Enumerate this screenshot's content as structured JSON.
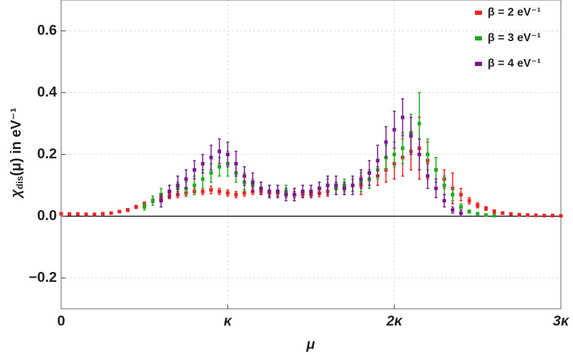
{
  "chart_data": {
    "type": "scatter",
    "x_label": "μ",
    "y_label": {
      "symbol": "χ",
      "subscript": "dis",
      "rest": "(μ) in eV⁻¹"
    },
    "xlim": [
      0,
      3
    ],
    "ylim": [
      -0.3,
      0.7
    ],
    "xticks": [
      0,
      {
        "value": 1,
        "label": "κ"
      },
      {
        "value": 2,
        "label": "2κ"
      },
      {
        "value": 3,
        "label": "3κ"
      }
    ],
    "yticks": [
      {
        "value": -0.2,
        "label": "−0.2"
      },
      {
        "value": 0,
        "label": "0.0"
      },
      0.2,
      0.4,
      0.6
    ],
    "grid": true,
    "legend": "top-right",
    "series": [
      {
        "name": "β = 2 eV⁻¹",
        "color": "#ee2222",
        "x": [
          0,
          0.05,
          0.1,
          0.15,
          0.2,
          0.25,
          0.3,
          0.35,
          0.4,
          0.45,
          0.5,
          0.55,
          0.6,
          0.65,
          0.7,
          0.75,
          0.8,
          0.85,
          0.9,
          0.95,
          1.0,
          1.05,
          1.1,
          1.15,
          1.2,
          1.25,
          1.3,
          1.35,
          1.4,
          1.45,
          1.5,
          1.55,
          1.6,
          1.65,
          1.7,
          1.75,
          1.8,
          1.85,
          1.9,
          1.95,
          2.0,
          2.05,
          2.1,
          2.15,
          2.2,
          2.25,
          2.3,
          2.35,
          2.4,
          2.45,
          2.5,
          2.55,
          2.6,
          2.65,
          2.7,
          2.75,
          2.8,
          2.85,
          2.9,
          2.95,
          3.0
        ],
        "values": [
          0.008,
          0.007,
          0.007,
          0.006,
          0.006,
          0.008,
          0.01,
          0.015,
          0.02,
          0.03,
          0.04,
          0.05,
          0.06,
          0.065,
          0.07,
          0.075,
          0.08,
          0.08,
          0.085,
          0.08,
          0.075,
          0.07,
          0.075,
          0.08,
          0.08,
          0.075,
          0.075,
          0.07,
          0.07,
          0.07,
          0.07,
          0.075,
          0.08,
          0.09,
          0.09,
          0.1,
          0.1,
          0.12,
          0.13,
          0.15,
          0.17,
          0.19,
          0.21,
          0.22,
          0.18,
          0.15,
          0.12,
          0.09,
          0.07,
          0.05,
          0.035,
          0.025,
          0.015,
          0.01,
          0.007,
          0.005,
          0.004,
          0.003,
          0.002,
          0.002,
          0.001
        ],
        "errors": [
          0.003,
          0.003,
          0.003,
          0.003,
          0.003,
          0.003,
          0.003,
          0.004,
          0.005,
          0.005,
          0.006,
          0.006,
          0.008,
          0.008,
          0.01,
          0.01,
          0.01,
          0.01,
          0.012,
          0.01,
          0.01,
          0.01,
          0.01,
          0.01,
          0.01,
          0.01,
          0.01,
          0.01,
          0.01,
          0.01,
          0.01,
          0.012,
          0.015,
          0.02,
          0.02,
          0.02,
          0.03,
          0.03,
          0.03,
          0.04,
          0.05,
          0.06,
          0.06,
          0.1,
          0.06,
          0.04,
          0.03,
          0.05,
          0.02,
          0.01,
          0.008,
          0.006,
          0.005,
          0.004,
          0.003,
          0.003,
          0.002,
          0.002,
          0.002,
          0.002,
          0.002
        ]
      },
      {
        "name": "β = 3 eV⁻¹",
        "color": "#22aa22",
        "x": [
          0.5,
          0.55,
          0.6,
          0.65,
          0.7,
          0.75,
          0.8,
          0.85,
          0.9,
          0.95,
          1.0,
          1.05,
          1.1,
          1.15,
          1.2,
          1.25,
          1.3,
          1.35,
          1.4,
          1.45,
          1.5,
          1.55,
          1.6,
          1.65,
          1.7,
          1.75,
          1.8,
          1.85,
          1.9,
          1.95,
          2.0,
          2.05,
          2.1,
          2.15,
          2.2,
          2.25,
          2.3,
          2.35,
          2.4,
          2.45,
          2.5,
          2.55,
          2.6
        ],
        "values": [
          0.03,
          0.05,
          0.07,
          0.08,
          0.09,
          0.09,
          0.1,
          0.12,
          0.14,
          0.16,
          0.17,
          0.14,
          0.11,
          0.1,
          0.09,
          0.08,
          0.08,
          0.08,
          0.07,
          0.08,
          0.08,
          0.09,
          0.1,
          0.09,
          0.1,
          0.1,
          0.11,
          0.12,
          0.15,
          0.19,
          0.2,
          0.22,
          0.27,
          0.3,
          0.2,
          0.15,
          0.1,
          0.07,
          0.03,
          0.015,
          0.008,
          0.004,
          0.002
        ],
        "errors": [
          0.01,
          0.015,
          0.02,
          0.02,
          0.02,
          0.02,
          0.03,
          0.03,
          0.03,
          0.03,
          0.04,
          0.03,
          0.03,
          0.02,
          0.02,
          0.02,
          0.02,
          0.02,
          0.02,
          0.02,
          0.02,
          0.02,
          0.02,
          0.02,
          0.02,
          0.02,
          0.03,
          0.03,
          0.03,
          0.04,
          0.04,
          0.05,
          0.06,
          0.1,
          0.05,
          0.04,
          0.03,
          0.02,
          0.01,
          0.005,
          0.004,
          0.003,
          0.002
        ]
      },
      {
        "name": "β = 4 eV⁻¹",
        "color": "#7a1a8a",
        "x": [
          0.6,
          0.65,
          0.7,
          0.75,
          0.8,
          0.85,
          0.9,
          0.95,
          1.0,
          1.05,
          1.1,
          1.15,
          1.2,
          1.25,
          1.3,
          1.35,
          1.4,
          1.45,
          1.5,
          1.55,
          1.6,
          1.65,
          1.7,
          1.75,
          1.8,
          1.85,
          1.9,
          1.95,
          2.0,
          2.05,
          2.1,
          2.15,
          2.2,
          2.25,
          2.3,
          2.35,
          2.4
        ],
        "values": [
          0.05,
          0.08,
          0.1,
          0.12,
          0.15,
          0.17,
          0.19,
          0.21,
          0.2,
          0.17,
          0.13,
          0.11,
          0.09,
          0.08,
          0.08,
          0.07,
          0.07,
          0.08,
          0.08,
          0.09,
          0.1,
          0.1,
          0.09,
          0.1,
          0.12,
          0.14,
          0.18,
          0.24,
          0.28,
          0.32,
          0.26,
          0.2,
          0.13,
          0.09,
          0.05,
          0.02,
          0.01
        ],
        "errors": [
          0.02,
          0.02,
          0.03,
          0.03,
          0.03,
          0.03,
          0.04,
          0.04,
          0.04,
          0.04,
          0.03,
          0.03,
          0.02,
          0.02,
          0.02,
          0.02,
          0.02,
          0.02,
          0.02,
          0.02,
          0.03,
          0.03,
          0.02,
          0.03,
          0.03,
          0.04,
          0.05,
          0.05,
          0.06,
          0.06,
          0.06,
          0.05,
          0.04,
          0.03,
          0.02,
          0.01,
          0.01
        ]
      }
    ]
  }
}
